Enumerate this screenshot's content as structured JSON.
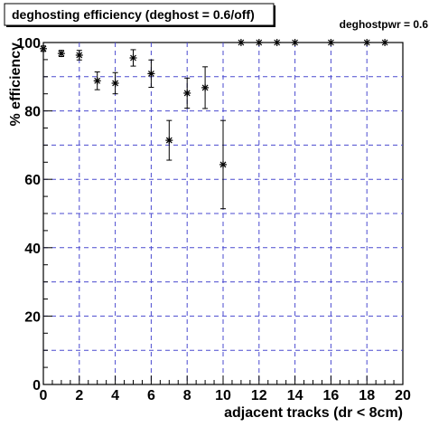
{
  "chart_data": {
    "type": "scatter",
    "title": "deghosting efficiency (deghost = 0.6/off)",
    "annotation": "deghostpwr = 0.6",
    "xlabel": "adjacent tracks (dr < 8cm)",
    "ylabel": "% efficiency",
    "xlim": [
      0,
      20
    ],
    "ylim": [
      0,
      100
    ],
    "x_ticks": [
      "0",
      "2",
      "4",
      "6",
      "8",
      "10",
      "12",
      "14",
      "16",
      "18",
      "20"
    ],
    "y_ticks": [
      "0",
      "20",
      "40",
      "60",
      "80",
      "100"
    ],
    "grid": true,
    "marker": "asterisk",
    "colors": {
      "grid": "#4a4acf",
      "marks": "#000000"
    },
    "points": [
      {
        "x": 0,
        "y": 98.2,
        "err": 0.8
      },
      {
        "x": 1,
        "y": 96.8,
        "err": 0.9
      },
      {
        "x": 2,
        "y": 96.3,
        "err": 1.4
      },
      {
        "x": 3,
        "y": 88.8,
        "err": 2.6
      },
      {
        "x": 4,
        "y": 88.1,
        "err": 3.1
      },
      {
        "x": 5,
        "y": 95.5,
        "err": 2.4
      },
      {
        "x": 6,
        "y": 90.9,
        "err": 4.0
      },
      {
        "x": 7,
        "y": 71.4,
        "err": 5.8
      },
      {
        "x": 8,
        "y": 85.2,
        "err": 4.4
      },
      {
        "x": 9,
        "y": 86.8,
        "err": 6.1
      },
      {
        "x": 10,
        "y": 64.3,
        "err": 12.9
      },
      {
        "x": 11,
        "y": 100.0,
        "err": 0
      },
      {
        "x": 12,
        "y": 100.0,
        "err": 0
      },
      {
        "x": 13,
        "y": 100.0,
        "err": 0
      },
      {
        "x": 14,
        "y": 100.0,
        "err": 0
      },
      {
        "x": 16,
        "y": 100.0,
        "err": 0
      },
      {
        "x": 18,
        "y": 100.0,
        "err": 0
      },
      {
        "x": 19,
        "y": 100.0,
        "err": 0
      }
    ]
  }
}
